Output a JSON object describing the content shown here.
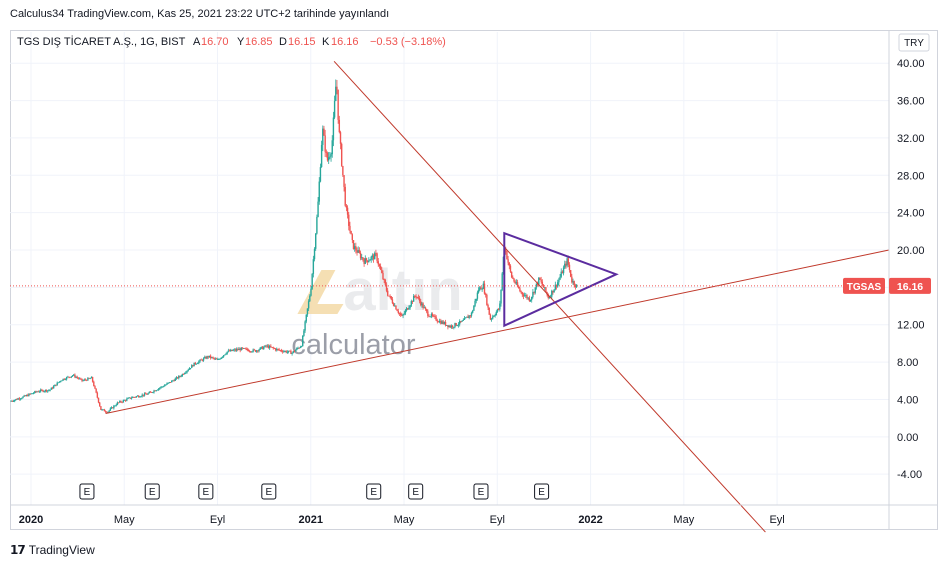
{
  "header": {
    "published": "Calculus34 TradingView.com, Kas 25, 2021 23:22 UTC+2 tarihinde yayınlandı"
  },
  "legend": {
    "symbol": "TGS DIŞ TİCARET A.Ş., 1G, BIST",
    "o_label": "A",
    "o_value": "16.70",
    "h_label": "Y",
    "h_value": "16.85",
    "l_label": "D",
    "l_value": "16.15",
    "c_label": "K",
    "c_value": "16.16",
    "change": "−0.53 (−3.18%)"
  },
  "currency": "TRY",
  "last_price": {
    "ticker": "TGSAS",
    "value": "16.16",
    "num": 16.16
  },
  "watermark": {
    "main": "altın",
    "sub": "calculator"
  },
  "footer": {
    "brand": "TradingView"
  },
  "colors": {
    "up": "#26a69a",
    "down": "#ef5350",
    "trendline": "#c0392b",
    "triangle": "#5b2c9f",
    "price_tag": "#ef5350",
    "grid": "#f0f3fa"
  },
  "chart_data": {
    "type": "candlestick",
    "y_ticks": [
      "40.00",
      "36.00",
      "32.00",
      "28.00",
      "24.00",
      "20.00",
      "16.00",
      "12.00",
      "8.00",
      "4.00",
      "0.00",
      "-4.00"
    ],
    "y_tick_values": [
      40,
      36,
      32,
      28,
      24,
      20,
      16,
      12,
      8,
      4,
      0,
      -4
    ],
    "ylim": [
      -7.3,
      41.2
    ],
    "x_ticks": [
      {
        "label": "2020",
        "t": 0.0
      },
      {
        "label": "May",
        "t": 4.0
      },
      {
        "label": "Eyl",
        "t": 8.0
      },
      {
        "label": "2021",
        "t": 12.0
      },
      {
        "label": "May",
        "t": 16.0
      },
      {
        "label": "Eyl",
        "t": 20.0
      },
      {
        "label": "2022",
        "t": 24.0
      },
      {
        "label": "May",
        "t": 28.0
      },
      {
        "label": "Eyl",
        "t": 32.0
      }
    ],
    "x_bold_labels": [
      "2020",
      "2021",
      "2022"
    ],
    "xlim": [
      -0.9,
      36.8
    ],
    "earnings_markers": {
      "label": "E",
      "t": [
        2.4,
        5.2,
        7.5,
        10.2,
        14.7,
        16.5,
        19.3,
        21.9
      ]
    },
    "price_path": [
      [
        -0.9,
        3.8
      ],
      [
        -0.3,
        4.3
      ],
      [
        0.3,
        4.9
      ],
      [
        0.8,
        5.0
      ],
      [
        1.3,
        6.1
      ],
      [
        1.8,
        6.6
      ],
      [
        2.2,
        6.0
      ],
      [
        2.6,
        6.3
      ],
      [
        3.0,
        2.9
      ],
      [
        3.3,
        2.7
      ],
      [
        3.7,
        3.6
      ],
      [
        4.3,
        4.2
      ],
      [
        5.0,
        4.6
      ],
      [
        5.8,
        5.6
      ],
      [
        6.4,
        6.5
      ],
      [
        7.0,
        7.8
      ],
      [
        7.6,
        8.6
      ],
      [
        8.0,
        8.2
      ],
      [
        8.4,
        9.1
      ],
      [
        9.0,
        9.4
      ],
      [
        9.6,
        9.2
      ],
      [
        10.1,
        9.7
      ],
      [
        10.6,
        9.3
      ],
      [
        11.2,
        9.0
      ],
      [
        11.6,
        9.8
      ],
      [
        12.0,
        15.8
      ],
      [
        12.3,
        24.5
      ],
      [
        12.5,
        33.0
      ],
      [
        12.7,
        29.5
      ],
      [
        12.9,
        31.0
      ],
      [
        13.1,
        38.5
      ],
      [
        13.2,
        33.0
      ],
      [
        13.5,
        24.5
      ],
      [
        13.8,
        20.5
      ],
      [
        14.3,
        18.8
      ],
      [
        14.8,
        19.4
      ],
      [
        15.3,
        15.3
      ],
      [
        15.9,
        12.8
      ],
      [
        16.5,
        15.2
      ],
      [
        17.0,
        13.2
      ],
      [
        17.5,
        12.4
      ],
      [
        18.0,
        11.8
      ],
      [
        18.5,
        12.3
      ],
      [
        18.9,
        13.2
      ],
      [
        19.2,
        15.8
      ],
      [
        19.4,
        16.2
      ],
      [
        19.7,
        12.6
      ],
      [
        20.1,
        13.8
      ],
      [
        20.3,
        20.5
      ],
      [
        20.6,
        17.2
      ],
      [
        21.0,
        15.5
      ],
      [
        21.4,
        14.7
      ],
      [
        21.8,
        16.9
      ],
      [
        22.2,
        14.9
      ],
      [
        22.6,
        16.6
      ],
      [
        23.0,
        18.9
      ],
      [
        23.2,
        16.7
      ],
      [
        23.4,
        16.16
      ]
    ],
    "trendlines": [
      {
        "name": "falling resistance",
        "from": [
          13.0,
          40.2
        ],
        "to": [
          31.5,
          -10.2
        ]
      },
      {
        "name": "rising support",
        "from": [
          3.2,
          2.5
        ],
        "to": [
          36.8,
          20.0
        ]
      }
    ],
    "triangle": [
      [
        20.3,
        21.8
      ],
      [
        25.1,
        17.4
      ],
      [
        20.3,
        11.9
      ]
    ]
  }
}
